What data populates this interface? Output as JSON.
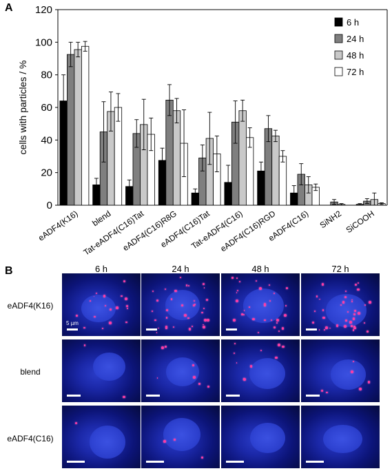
{
  "panels": {
    "a_label": "A",
    "b_label": "B"
  },
  "chart_data": {
    "type": "bar",
    "ylabel": "cells with particles / %",
    "xlabel": "",
    "ylim": [
      0,
      120
    ],
    "yticks": [
      0,
      20,
      40,
      60,
      80,
      100,
      120
    ],
    "legend_position": "top-right",
    "categories": [
      "eADF4(K16)",
      "blend",
      "Tat-eADF4(C16)Tat",
      "eADF4(C16)R8G",
      "eADF4(C16)Tat",
      "Tat-eADF4(C16)",
      "eADF4(C16)RGD",
      "eADF4(C16)",
      "SiNH2",
      "SiCOOH"
    ],
    "series": [
      {
        "name": "6 h",
        "color": "#000000",
        "values": [
          64,
          12.5,
          11.5,
          27.5,
          7.5,
          14,
          21,
          7.5,
          0,
          0.5
        ],
        "errors": [
          16,
          4,
          4,
          7.5,
          2.5,
          10.5,
          5.5,
          4.5,
          0,
          0.5
        ]
      },
      {
        "name": "24 h",
        "color": "#7f7f7f",
        "values": [
          92.5,
          45,
          44,
          64.5,
          29,
          51,
          47,
          19,
          2,
          2.5
        ],
        "errors": [
          7.5,
          18.5,
          8.5,
          9.5,
          8,
          13,
          8,
          6.5,
          1.5,
          1.5
        ]
      },
      {
        "name": "48 h",
        "color": "#c9c9c9",
        "values": [
          95.5,
          57.5,
          49.5,
          58,
          41,
          58,
          42.5,
          12.5,
          0.5,
          3.5
        ],
        "errors": [
          4.5,
          12,
          15.5,
          7.5,
          16,
          6.5,
          3.5,
          5,
          0.5,
          4
        ]
      },
      {
        "name": "72 h",
        "color": "#ffffff",
        "values": [
          97.5,
          60,
          43.5,
          38,
          31.5,
          41.5,
          30,
          11,
          0,
          1
        ],
        "errors": [
          3,
          8.5,
          10,
          20.5,
          11,
          6,
          3.5,
          2,
          0,
          0.5
        ]
      }
    ]
  },
  "microscopy": {
    "columns": [
      "6 h",
      "24 h",
      "48 h",
      "72 h"
    ],
    "rows": [
      "eADF4(K16)",
      "blend",
      "eADF4(C16)"
    ],
    "scale_label": "5 µm",
    "colors": {
      "nucleus_stain": "#2a3cc8",
      "particles": "#ff3aa6"
    }
  }
}
